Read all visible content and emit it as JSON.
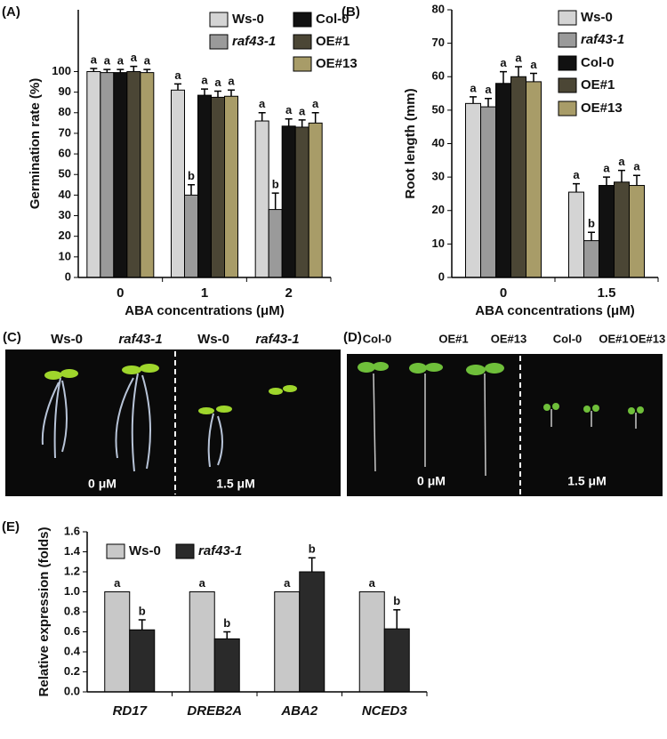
{
  "chart_data": [
    {
      "type": "bar",
      "panel_label": "(A)",
      "y_label": "Germination rate (%)",
      "x_label": "ABA concentrations (μM)",
      "categories": [
        "0",
        "1",
        "2"
      ],
      "ylim": [
        0,
        130
      ],
      "yticks": [
        0,
        10,
        20,
        30,
        40,
        50,
        60,
        70,
        80,
        90,
        100
      ],
      "legend": "upper right",
      "series": [
        {
          "name": "Ws-0",
          "color": "#d4d4d4",
          "values": [
            100,
            91,
            76
          ],
          "errors": [
            1.5,
            3,
            4
          ],
          "letters": [
            "a",
            "a",
            "a"
          ]
        },
        {
          "name": "raf43-1",
          "italic": true,
          "color": "#9a9a9a",
          "values": [
            99.5,
            40,
            33
          ],
          "errors": [
            1.5,
            5,
            8
          ],
          "letters": [
            "a",
            "b",
            "b"
          ]
        },
        {
          "name": "Col-0",
          "color": "#111111",
          "values": [
            99.5,
            88.5,
            73.5
          ],
          "errors": [
            1.5,
            3,
            3.5
          ],
          "letters": [
            "a",
            "a",
            "a"
          ]
        },
        {
          "name": "OE#1",
          "color": "#4b4635",
          "values": [
            100,
            87.5,
            73
          ],
          "errors": [
            2.5,
            3,
            3.5
          ],
          "letters": [
            "a",
            "a",
            "a"
          ]
        },
        {
          "name": "OE#13",
          "color": "#a89c68",
          "values": [
            99.5,
            88,
            75
          ],
          "errors": [
            1.5,
            3,
            5
          ],
          "letters": [
            "a",
            "a",
            "a"
          ]
        }
      ]
    },
    {
      "type": "bar",
      "panel_label": "(B)",
      "y_label": "Root length (mm)",
      "x_label": "ABA concentrations (μM)",
      "categories": [
        "0",
        "1.5"
      ],
      "ylim": [
        0,
        80
      ],
      "yticks": [
        0,
        10,
        20,
        30,
        40,
        50,
        60,
        70,
        80
      ],
      "legend": "upper right",
      "series": [
        {
          "name": "Ws-0",
          "color": "#d4d4d4",
          "values": [
            52,
            25.5
          ],
          "errors": [
            2,
            2.5
          ],
          "letters": [
            "a",
            "a"
          ]
        },
        {
          "name": "raf43-1",
          "italic": true,
          "color": "#9a9a9a",
          "values": [
            51,
            11
          ],
          "errors": [
            2.5,
            2.5
          ],
          "letters": [
            "a",
            "b"
          ]
        },
        {
          "name": "Col-0",
          "color": "#111111",
          "values": [
            58,
            27.5
          ],
          "errors": [
            3.5,
            2.5
          ],
          "letters": [
            "a",
            "a"
          ]
        },
        {
          "name": "OE#1",
          "color": "#4b4635",
          "values": [
            60,
            28.5
          ],
          "errors": [
            3,
            3.5
          ],
          "letters": [
            "a",
            "a"
          ]
        },
        {
          "name": "OE#13",
          "color": "#a89c68",
          "values": [
            58.5,
            27.5
          ],
          "errors": [
            2.5,
            3
          ],
          "letters": [
            "a",
            "a"
          ]
        }
      ]
    },
    {
      "type": "bar",
      "panel_label": "(E)",
      "y_label": "Relative expression (folds)",
      "italic_categories": true,
      "categories": [
        "RD17",
        "DREB2A",
        "ABA2",
        "NCED3"
      ],
      "ylim": [
        0,
        1.6
      ],
      "yticks": [
        {
          "value": 0,
          "label": "0.0"
        },
        0.2,
        0.4,
        0.6,
        0.8,
        {
          "value": 1,
          "label": "1.0"
        },
        1.2,
        1.4,
        1.6
      ],
      "legend": "upper left",
      "series": [
        {
          "name": "Ws-0",
          "color": "#c8c8c8",
          "values": [
            1,
            1,
            1,
            1
          ],
          "letters": [
            "a",
            "a",
            "a",
            "a"
          ]
        },
        {
          "name": "raf43-1",
          "italic": true,
          "color": "#2a2a2a",
          "values": [
            0.62,
            0.53,
            1.2,
            0.63
          ],
          "errors": [
            0.1,
            0.07,
            0.14,
            0.19
          ],
          "letters": [
            "b",
            "b",
            "b",
            "b"
          ]
        }
      ]
    }
  ],
  "photos": [
    {
      "panel_label": "(C)",
      "labels": [
        "Ws-0",
        "raf43-1",
        "Ws-0",
        "raf43-1"
      ],
      "concentrations": [
        "0 μM",
        "1.5 μM"
      ]
    },
    {
      "panel_label": "(D)",
      "labels": [
        "Col-0",
        "OE#1",
        "OE#13",
        "Col-0",
        "OE#1",
        "OE#13"
      ],
      "concentrations": [
        "0 μM",
        "1.5 μM"
      ]
    }
  ]
}
